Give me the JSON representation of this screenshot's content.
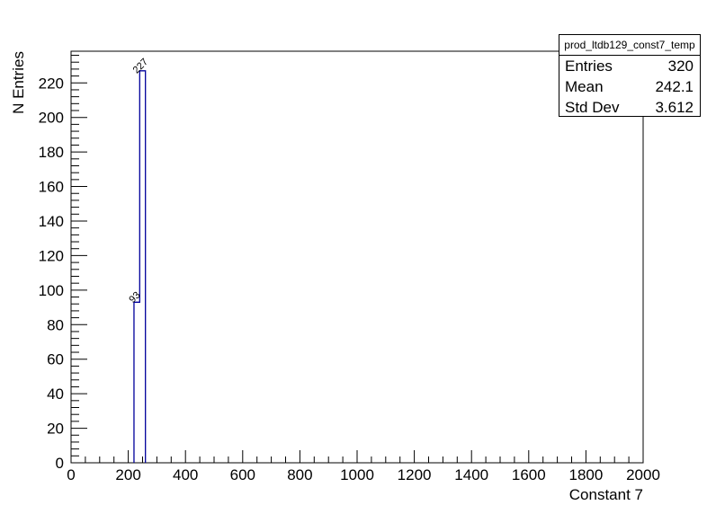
{
  "chart_data": {
    "type": "bar",
    "style": "step-histogram",
    "xlabel": "Constant 7",
    "ylabel": "N Entries",
    "xlim": [
      0,
      2000
    ],
    "ylim": [
      0,
      238.35
    ],
    "xticks": [
      0,
      200,
      400,
      600,
      800,
      1000,
      1200,
      1400,
      1600,
      1800,
      2000
    ],
    "yticks": [
      0,
      20,
      40,
      60,
      80,
      100,
      120,
      140,
      160,
      180,
      200,
      220
    ],
    "bins": [
      {
        "low": 220,
        "high": 240,
        "value": 93,
        "label": "93"
      },
      {
        "low": 240,
        "high": 260,
        "value": 227,
        "label": "227"
      }
    ],
    "line_color": "#00009c",
    "grid": false
  },
  "stats": {
    "title": "prod_ltdb129_const7_temp",
    "rows": [
      {
        "label": "Entries",
        "value": "320"
      },
      {
        "label": "Mean",
        "value": "242.1"
      },
      {
        "label": "Std Dev",
        "value": "3.612"
      }
    ]
  }
}
